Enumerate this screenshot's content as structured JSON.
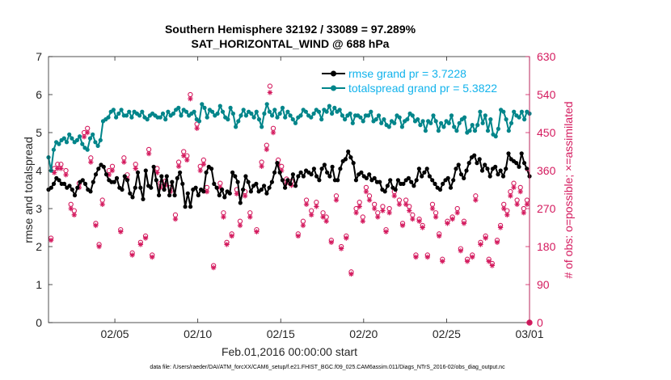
{
  "chart_data": {
    "type": "line",
    "title": "Southern Hemisphere 32192 / 33089 = 97.289%",
    "subtitle": "SAT_HORIZONTAL_WIND @ 688 hPa",
    "xlabel": "Feb.01,2016 00:00:00 start",
    "ylabel": "rmse and totalspread",
    "ylabel_right": "# of obs: o=possible; ×=assimilated",
    "footnote": "data file: /Users/raeder/DAI/ATM_forcXX/CAM6_setup/f.e21.FHIST_BGC.f09_025.CAM6assim.011/Diags_NTrS_2016-02/obs_diag_output.nc",
    "xlim": [
      1,
      30
    ],
    "ylim": [
      0,
      7
    ],
    "ylim_right": [
      0,
      630
    ],
    "x_tick_values": [
      5,
      10,
      15,
      20,
      25,
      30
    ],
    "x_tick_labels": [
      "02/05",
      "02/10",
      "02/15",
      "02/20",
      "02/25",
      "03/01"
    ],
    "y_ticks": [
      "0",
      "1",
      "2",
      "3",
      "4",
      "5",
      "6",
      "7"
    ],
    "y_ticks_right": [
      "0",
      "90",
      "180",
      "270",
      "360",
      "450",
      "540",
      "630"
    ],
    "legend": [
      "rmse grand pr = 3.7228",
      "totalspread grand pr = 5.3822"
    ],
    "series": [
      {
        "name": "rmse grand pr = 3.7228",
        "axis": "left",
        "color": "#000000",
        "values": [
          3.5,
          3.55,
          3.65,
          3.8,
          3.75,
          3.65,
          3.65,
          3.55,
          3.6,
          3.5,
          3.35,
          3.55,
          3.7,
          3.75,
          3.65,
          3.5,
          3.45,
          3.7,
          3.9,
          4.05,
          4.15,
          4.1,
          3.9,
          3.75,
          3.7,
          3.7,
          3.8,
          3.55,
          3.5,
          3.85,
          3.75,
          3.4,
          3.3,
          3.55,
          3.95,
          3.55,
          3.25,
          4.0,
          3.6,
          3.55,
          4.1,
          3.75,
          3.35,
          3.85,
          3.5,
          3.85,
          3.35,
          3.7,
          3.35,
          3.8,
          3.95,
          3.65,
          3.05,
          3.4,
          3.05,
          3.5,
          3.55,
          3.35,
          3.5,
          3.45,
          3.95,
          4.1,
          4.05,
          3.65,
          3.55,
          3.35,
          3.5,
          3.3,
          3.45,
          3.4,
          3.95,
          3.85,
          3.7,
          3.15,
          3.5,
          3.85,
          3.7,
          3.45,
          3.6,
          3.65,
          3.45,
          3.5,
          3.6,
          3.4,
          3.55,
          3.7,
          3.95,
          4.2,
          3.95,
          3.75,
          3.55,
          3.75,
          3.65,
          3.9,
          3.6,
          3.85,
          3.95,
          3.85,
          4.0,
          3.95,
          3.9,
          4.05,
          3.85,
          3.75,
          4.05,
          4.15,
          3.95,
          3.85,
          4.1,
          3.75,
          3.75,
          4.05,
          4.25,
          4.3,
          4.5,
          4.35,
          4.2,
          3.75,
          3.9,
          3.95,
          3.85,
          3.8,
          3.9,
          3.75,
          3.8,
          3.7,
          3.7,
          3.5,
          3.45,
          3.6,
          3.75,
          3.55,
          3.5,
          3.75,
          3.65,
          3.65,
          3.75,
          3.8,
          3.7,
          3.6,
          3.75,
          4.05,
          3.85,
          3.95,
          4.05,
          3.85,
          3.75,
          3.65,
          3.55,
          3.5,
          3.65,
          3.75,
          3.8,
          3.55,
          3.75,
          4.05,
          4.15,
          3.9,
          3.8,
          4.0,
          4.2,
          4.35,
          4.4,
          4.2,
          4.3,
          4.0,
          4.15,
          4.05,
          3.85,
          4.05,
          4.1,
          3.9,
          4.0,
          3.85,
          4.05,
          4.45,
          4.3,
          4.25,
          4.2,
          4.1,
          4.45,
          4.2,
          4.05,
          3.85
        ]
      },
      {
        "name": "totalspread grand pr = 5.3822",
        "axis": "left",
        "color": "#00858a",
        "values": [
          4.35,
          4.0,
          4.55,
          4.75,
          4.7,
          4.8,
          4.85,
          4.75,
          4.95,
          4.85,
          4.75,
          4.8,
          4.9,
          4.7,
          4.6,
          4.55,
          4.85,
          4.95,
          4.75,
          4.65,
          4.8,
          5.3,
          5.35,
          5.4,
          5.55,
          5.6,
          5.4,
          5.5,
          5.6,
          5.45,
          5.45,
          5.55,
          5.4,
          5.55,
          5.5,
          5.45,
          5.55,
          5.4,
          5.35,
          5.45,
          5.5,
          5.45,
          5.4,
          5.4,
          5.5,
          5.35,
          5.55,
          5.45,
          5.5,
          5.6,
          5.65,
          5.45,
          5.6,
          5.55,
          5.45,
          5.5,
          5.55,
          5.35,
          5.3,
          5.75,
          5.65,
          5.4,
          5.6,
          5.55,
          5.45,
          5.5,
          5.7,
          5.55,
          5.4,
          5.35,
          5.65,
          5.5,
          5.15,
          5.3,
          5.45,
          5.6,
          5.45,
          5.55,
          5.5,
          5.4,
          5.55,
          5.35,
          5.15,
          5.5,
          5.75,
          5.55,
          5.45,
          5.6,
          5.4,
          5.5,
          5.65,
          5.4,
          5.55,
          5.45,
          5.35,
          5.25,
          5.4,
          5.45,
          5.6,
          5.55,
          5.45,
          5.4,
          5.5,
          5.6,
          5.55,
          5.35,
          5.6,
          5.55,
          5.7,
          5.5,
          5.65,
          5.55,
          5.6,
          5.45,
          5.35,
          5.45,
          5.5,
          5.25,
          5.45,
          5.45,
          5.4,
          5.3,
          5.45,
          5.45,
          5.55,
          5.3,
          5.35,
          5.45,
          5.25,
          5.35,
          5.2,
          5.15,
          5.3,
          5.25,
          5.45,
          5.4,
          5.15,
          5.3,
          5.35,
          5.5,
          5.45,
          5.3,
          5.35,
          5.2,
          5.3,
          5.05,
          5.3,
          5.25,
          5.45,
          5.3,
          5.05,
          5.25,
          5.15,
          5.3,
          5.25,
          5.45,
          5.15,
          5.05,
          5.25,
          5.35,
          5.4,
          5.0,
          5.05,
          5.2,
          5.05,
          5.2,
          5.55,
          5.25,
          5.45,
          5.05,
          5.35,
          4.95,
          4.9,
          5.1,
          5.6,
          5.55,
          5.35,
          5.05,
          5.25,
          5.55,
          5.45,
          5.4,
          5.55,
          5.35,
          5.55,
          5.5
        ]
      },
      {
        "name": "obs possible",
        "axis": "right",
        "color": "#d41a5e",
        "marker": "o",
        "x": [
          1.15,
          1.35,
          1.55,
          1.75,
          2.05,
          2.35,
          2.55,
          2.85,
          3.15,
          3.35,
          3.55,
          3.85,
          4.05,
          4.25,
          4.65,
          4.85,
          5.35,
          5.55,
          5.75,
          6.05,
          6.25,
          6.55,
          6.85,
          7.05,
          7.25,
          7.55,
          7.75,
          8.05,
          8.35,
          8.65,
          8.85,
          9.15,
          9.35,
          9.55,
          9.95,
          10.15,
          10.35,
          10.55,
          10.95,
          11.35,
          11.55,
          11.75,
          12.05,
          12.35,
          12.55,
          12.85,
          13.15,
          13.55,
          13.85,
          14.15,
          14.35,
          14.55,
          14.85,
          15.05,
          15.35,
          15.65,
          16.05,
          16.35,
          16.55,
          16.85,
          17.15,
          17.55,
          17.75,
          18.05,
          18.35,
          18.65,
          18.95,
          19.25,
          19.55,
          19.75,
          19.95,
          20.15,
          20.35,
          20.65,
          20.85,
          21.15,
          21.35,
          21.55,
          21.85,
          22.15,
          22.35,
          22.55,
          22.75,
          22.95,
          23.15,
          23.35,
          23.55,
          23.85,
          24.15,
          24.35,
          24.55,
          24.75,
          25.05,
          25.35,
          25.65,
          25.85,
          26.05,
          26.25,
          26.55,
          26.75,
          27.05,
          27.35,
          27.55,
          27.75,
          28.05,
          28.25,
          28.45,
          28.65,
          28.85,
          29.05,
          29.25,
          29.45,
          29.65,
          29.85
        ],
        "values": [
          200,
          365,
          375,
          375,
          360,
          280,
          265,
          330,
          450,
          460,
          390,
          235,
          185,
          290,
          360,
          370,
          220,
          390,
          350,
          165,
          375,
          190,
          205,
          410,
          160,
          365,
          330,
          335,
          320,
          255,
          380,
          405,
          395,
          540,
          470,
          370,
          385,
          320,
          135,
          330,
          260,
          190,
          210,
          315,
          240,
          310,
          260,
          220,
          380,
          420,
          560,
          460,
          385,
          370,
          340,
          335,
          210,
          240,
          290,
          265,
          285,
          260,
          250,
          195,
          300,
          180,
          205,
          120,
          270,
          285,
          250,
          320,
          300,
          280,
          260,
          275,
          220,
          270,
          310,
          290,
          235,
          290,
          275,
          255,
          160,
          245,
          230,
          160,
          280,
          260,
          210,
          150,
          240,
          250,
          270,
          175,
          240,
          150,
          160,
          300,
          190,
          205,
          150,
          140,
          195,
          230,
          280,
          265,
          310,
          330,
          290,
          320,
          270,
          290
        ]
      },
      {
        "name": "obs assimilated",
        "axis": "right",
        "color": "#d41a5e",
        "marker": "*",
        "x": [
          1.15,
          1.35,
          1.55,
          1.75,
          2.05,
          2.35,
          2.55,
          2.85,
          3.15,
          3.35,
          3.55,
          3.85,
          4.05,
          4.25,
          4.65,
          4.85,
          5.35,
          5.55,
          5.75,
          6.05,
          6.25,
          6.55,
          6.85,
          7.05,
          7.25,
          7.55,
          7.75,
          8.05,
          8.35,
          8.65,
          8.85,
          9.15,
          9.35,
          9.55,
          9.95,
          10.15,
          10.35,
          10.55,
          10.95,
          11.35,
          11.55,
          11.75,
          12.05,
          12.35,
          12.55,
          12.85,
          13.15,
          13.55,
          13.85,
          14.15,
          14.35,
          14.55,
          14.85,
          15.05,
          15.35,
          15.65,
          16.05,
          16.35,
          16.55,
          16.85,
          17.15,
          17.55,
          17.75,
          18.05,
          18.35,
          18.65,
          18.95,
          19.25,
          19.55,
          19.75,
          19.95,
          20.15,
          20.35,
          20.65,
          20.85,
          21.15,
          21.35,
          21.55,
          21.85,
          22.15,
          22.35,
          22.55,
          22.75,
          22.95,
          23.15,
          23.35,
          23.55,
          23.85,
          24.15,
          24.35,
          24.55,
          24.75,
          25.05,
          25.35,
          25.65,
          25.85,
          26.05,
          26.25,
          26.55,
          26.75,
          27.05,
          27.35,
          27.55,
          27.75,
          28.05,
          28.25,
          28.45,
          28.65,
          28.85,
          29.05,
          29.25,
          29.45,
          29.65,
          29.85
        ],
        "values": [
          195,
          355,
          365,
          365,
          350,
          270,
          255,
          320,
          440,
          450,
          380,
          230,
          180,
          280,
          350,
          360,
          215,
          380,
          340,
          160,
          365,
          185,
          200,
          400,
          155,
          355,
          320,
          325,
          310,
          245,
          370,
          395,
          385,
          530,
          460,
          360,
          375,
          310,
          130,
          320,
          250,
          185,
          205,
          305,
          230,
          300,
          250,
          215,
          370,
          410,
          545,
          450,
          375,
          360,
          330,
          325,
          205,
          230,
          280,
          255,
          275,
          250,
          240,
          190,
          290,
          175,
          200,
          115,
          260,
          275,
          240,
          310,
          290,
          270,
          250,
          265,
          215,
          260,
          300,
          280,
          230,
          280,
          265,
          245,
          155,
          240,
          225,
          155,
          270,
          250,
          205,
          145,
          235,
          245,
          260,
          170,
          235,
          145,
          155,
          290,
          185,
          200,
          145,
          135,
          190,
          225,
          270,
          255,
          300,
          320,
          280,
          310,
          260,
          280
        ]
      }
    ]
  }
}
